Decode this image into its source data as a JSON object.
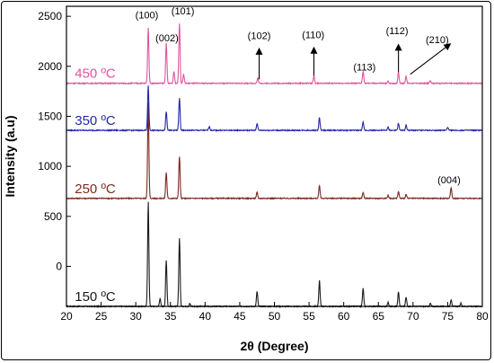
{
  "chart_data": {
    "type": "line",
    "title": "",
    "xlabel": "2θ (Degree)",
    "ylabel": "Intensity (a.u)",
    "xlim": [
      20,
      80
    ],
    "ylim": [
      -400,
      2600
    ],
    "x_ticks": [
      20,
      25,
      30,
      35,
      40,
      45,
      50,
      55,
      60,
      65,
      70,
      75,
      80
    ],
    "y_ticks": [
      0,
      500,
      1000,
      1500,
      2000,
      2500
    ],
    "grid": false,
    "series": [
      {
        "name": "150 ºC",
        "color": "#1a1a1a",
        "baseline": -400,
        "peaks": [
          [
            31.8,
            1050
          ],
          [
            33.5,
            80
          ],
          [
            34.4,
            460
          ],
          [
            36.3,
            680
          ],
          [
            37.8,
            30
          ],
          [
            47.5,
            150
          ],
          [
            56.5,
            260
          ],
          [
            62.8,
            180
          ],
          [
            66.4,
            40
          ],
          [
            67.9,
            150
          ],
          [
            69.0,
            90
          ],
          [
            72.5,
            30
          ],
          [
            75.5,
            70
          ],
          [
            76.9,
            30
          ]
        ]
      },
      {
        "name": "250 ºC",
        "color": "#7a2a1f",
        "baseline": 680,
        "peaks": [
          [
            31.8,
            960
          ],
          [
            34.4,
            260
          ],
          [
            36.3,
            420
          ],
          [
            47.5,
            60
          ],
          [
            56.5,
            130
          ],
          [
            62.8,
            60
          ],
          [
            66.4,
            30
          ],
          [
            67.9,
            70
          ],
          [
            69.0,
            40
          ],
          [
            75.5,
            110
          ]
        ]
      },
      {
        "name": "350 ºC",
        "color": "#2328a8",
        "baseline": 1360,
        "peaks": [
          [
            31.8,
            450
          ],
          [
            34.4,
            190
          ],
          [
            36.3,
            320
          ],
          [
            40.6,
            40
          ],
          [
            47.5,
            70
          ],
          [
            56.5,
            130
          ],
          [
            62.8,
            80
          ],
          [
            66.4,
            30
          ],
          [
            67.9,
            70
          ],
          [
            69.0,
            50
          ],
          [
            75.0,
            30
          ]
        ]
      },
      {
        "name": "450 ºC",
        "color": "#e0559f",
        "baseline": 1830,
        "peaks": [
          [
            31.8,
            560
          ],
          [
            34.4,
            400
          ],
          [
            35.5,
            120
          ],
          [
            36.3,
            600
          ],
          [
            36.9,
            90
          ],
          [
            47.6,
            50
          ],
          [
            55.7,
            70
          ],
          [
            62.8,
            120
          ],
          [
            66.4,
            20
          ],
          [
            67.9,
            110
          ],
          [
            69.0,
            70
          ],
          [
            72.5,
            30
          ]
        ]
      }
    ],
    "annotations": [
      {
        "text": "(100)",
        "x": 31.6,
        "y": 2480
      },
      {
        "text": "(002)",
        "x": 34.5,
        "y": 2250
      },
      {
        "text": "(101)",
        "x": 36.8,
        "y": 2520
      },
      {
        "text": "(102)",
        "x": 47.8,
        "y": 2270
      },
      {
        "text": "(110)",
        "x": 55.6,
        "y": 2280
      },
      {
        "text": "(113)",
        "x": 63.0,
        "y": 1960
      },
      {
        "text": "(112)",
        "x": 67.7,
        "y": 2320
      },
      {
        "text": "(210)",
        "x": 73.5,
        "y": 2230
      },
      {
        "text": "(004)",
        "x": 75.2,
        "y": 830
      }
    ],
    "arrows": [
      {
        "from": [
          47.8,
          1870
        ],
        "to": [
          47.8,
          2170
        ]
      },
      {
        "from": [
          55.7,
          1905
        ],
        "to": [
          55.7,
          2180
        ]
      },
      {
        "from": [
          67.9,
          1940
        ],
        "to": [
          67.9,
          2210
        ]
      },
      {
        "from": [
          69.6,
          1920
        ],
        "to": [
          75.3,
          2220
        ]
      }
    ]
  }
}
